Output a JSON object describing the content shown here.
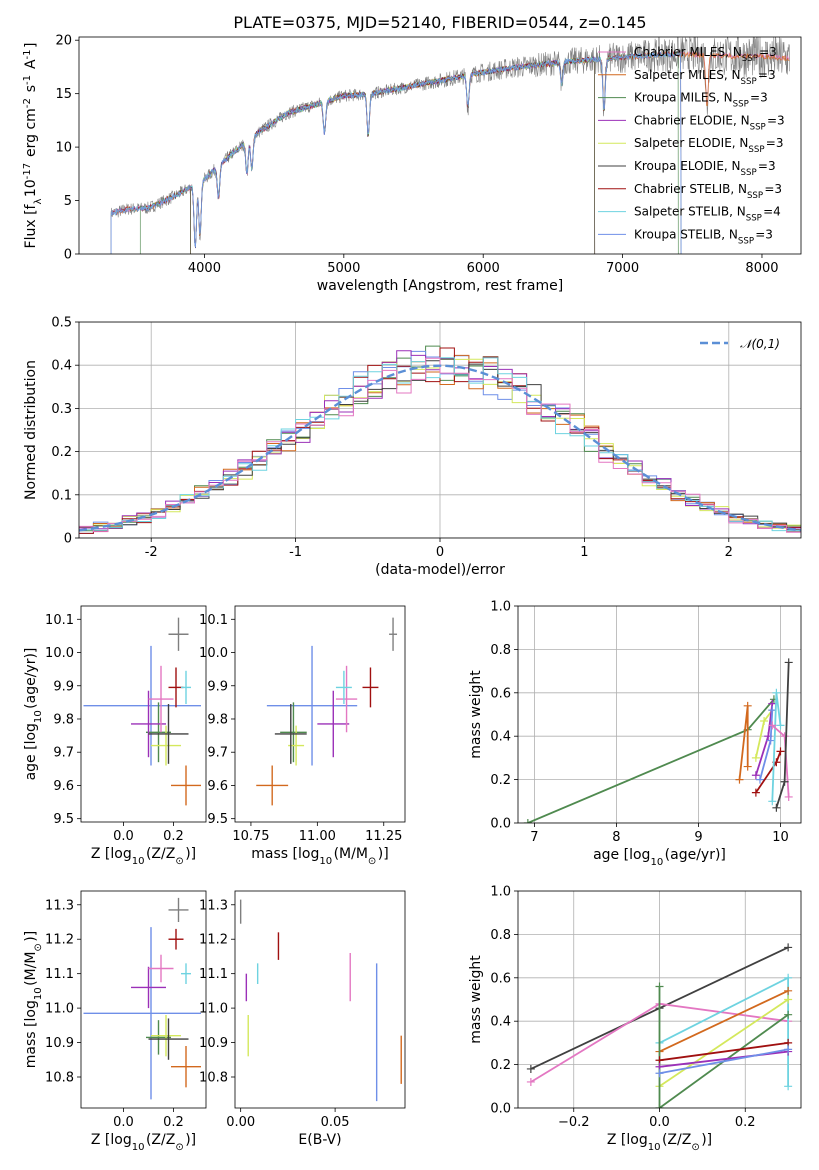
{
  "title": "PLATE=0375, MJD=52140, FIBERID=0544, z=0.145",
  "colors": [
    "#7f7f7f",
    "#e377c2",
    "#d2691e",
    "#4f8a4f",
    "#9b30b8",
    "#d4e85c",
    "#404040",
    "#a01010",
    "#6ed3e0",
    "#6f8fe8"
  ],
  "chart_data": [
    {
      "type": "line",
      "title": "PLATE=0375, MJD=52140, FIBERID=0544, z=0.145",
      "xlabel": "wavelength [Angstrom, rest frame]",
      "ylabel": "Flux [f$_\\lambda$10$^{-17}$ erg cm$^{-2}$ s$^{-1}$ A$^{-1}$]",
      "xlim": [
        3100,
        8280
      ],
      "ylim": [
        0,
        20.3
      ],
      "xticks": [
        4000,
        5000,
        6000,
        7000,
        8000
      ],
      "yticks": [
        0,
        5,
        10,
        15,
        20
      ],
      "legend_position": "top-right",
      "observed_spectrum": {
        "x": [
          3330,
          3450,
          3600,
          3800,
          4000,
          4200,
          4400,
          4600,
          4800,
          5000,
          5200,
          5400,
          5600,
          5800,
          6000,
          6200,
          6400,
          6600,
          6800,
          7000,
          7200,
          7400,
          7600,
          7800,
          8000,
          8200
        ],
        "y": [
          3.8,
          4.2,
          4.3,
          5.5,
          7.0,
          9.4,
          11.5,
          13.2,
          14.0,
          14.8,
          15.0,
          15.5,
          16.0,
          16.5,
          17.0,
          17.4,
          17.7,
          18.0,
          18.2,
          18.4,
          18.6,
          18.7,
          18.6,
          18.5,
          18.5,
          18.3
        ]
      },
      "series": [
        {
          "name": "Chabrier MILES, N$_{SSP}$=3",
          "cutoff": [
            null,
            null
          ]
        },
        {
          "name": "Salpeter MILES, N$_{SSP}$=3",
          "cutoff": [
            null,
            null
          ]
        },
        {
          "name": "Kroupa MILES, N$_{SSP}$=3",
          "cutoff": [
            3540,
            7400
          ]
        },
        {
          "name": "Chabrier ELODIE, N$_{SSP}$=3",
          "cutoff": [
            3900,
            6800
          ]
        },
        {
          "name": "Salpeter ELODIE, N$_{SSP}$=3",
          "cutoff": [
            3900,
            6800
          ]
        },
        {
          "name": "Kroupa ELODIE, N$_{SSP}$=3",
          "cutoff": [
            3900,
            6800
          ]
        },
        {
          "name": "Chabrier STELIB, N$_{SSP}$=3",
          "cutoff": [
            3330,
            7420
          ]
        },
        {
          "name": "Salpeter STELIB, N$_{SSP}$=4",
          "cutoff": [
            3330,
            7420
          ]
        },
        {
          "name": "Kroupa STELIB, N$_{SSP}$=3",
          "cutoff": [
            3330,
            7420
          ]
        }
      ]
    },
    {
      "type": "histogram",
      "xlabel": "(data-model)/error",
      "ylabel": "Normed distribution",
      "xlim": [
        -2.5,
        2.5
      ],
      "ylim": [
        0,
        0.5
      ],
      "xticks": [
        -2,
        -1,
        0,
        1,
        2
      ],
      "yticks": [
        0.0,
        0.1,
        0.2,
        0.3,
        0.4,
        0.5
      ],
      "bin_width": 0.1,
      "grid": true,
      "legend_position": "top-right",
      "reference_curve": {
        "name": "$\\mathcal{N}(0,1)$",
        "mean": 0,
        "sigma": 1,
        "style": "dashed",
        "color": "#5b8fd6"
      }
    },
    {
      "type": "scatter",
      "xlabel": "Z [log$_{10}$(Z/Z$_\\odot$)]",
      "ylabel": "age  [log$_{10}$(age/yr)]",
      "xlim": [
        -0.17,
        0.33
      ],
      "ylim": [
        9.49,
        10.14
      ],
      "xticks": [
        "0.0",
        "0.2"
      ],
      "yticks": [
        "9.5",
        "9.6",
        "9.7",
        "9.8",
        "9.9",
        "10.0",
        "10.1"
      ],
      "points": [
        {
          "c": 9,
          "x": 0.11,
          "y": 9.84,
          "xe": [
            -0.27,
            0.2
          ],
          "ye": 0.18
        },
        {
          "c": 3,
          "x": 0.14,
          "y": 9.76,
          "xe": 0.05,
          "ye": 0.09
        },
        {
          "c": 4,
          "x": 0.1,
          "y": 9.785,
          "xe": 0.07,
          "ye": 0.1
        },
        {
          "c": 5,
          "x": 0.17,
          "y": 9.72,
          "xe": 0.06,
          "ye": 0.06
        },
        {
          "c": 1,
          "x": 0.15,
          "y": 9.86,
          "xe": 0.05,
          "ye": 0.1
        },
        {
          "c": 7,
          "x": 0.21,
          "y": 9.895,
          "xe": 0.03,
          "ye": 0.06
        },
        {
          "c": 8,
          "x": 0.25,
          "y": 9.895,
          "xe": 0.02,
          "ye": 0.05
        },
        {
          "c": 6,
          "x": 0.18,
          "y": 9.755,
          "xe": 0.08,
          "ye": 0.09
        },
        {
          "c": 2,
          "x": 0.25,
          "y": 9.6,
          "xe": 0.06,
          "ye": 0.06
        },
        {
          "c": 0,
          "x": 0.22,
          "y": 10.055,
          "xe": 0.04,
          "ye": 0.05
        }
      ]
    },
    {
      "type": "scatter",
      "xlabel": "mass [log$_{10}$(M/M$_\\odot$)]",
      "ylabel": "",
      "xlim": [
        10.69,
        11.33
      ],
      "ylim": [
        9.49,
        10.14
      ],
      "xticks": [
        "10.75",
        "11.00",
        "11.25"
      ],
      "yticks": [
        "9.5",
        "9.6",
        "9.7",
        "9.8",
        "9.9",
        "10.0",
        "10.1"
      ],
      "points": [
        {
          "c": 9,
          "x": 10.98,
          "y": 9.84,
          "xe": 0.17,
          "ye": 0.18
        },
        {
          "c": 3,
          "x": 10.91,
          "y": 9.76,
          "xe": 0.05,
          "ye": 0.09
        },
        {
          "c": 4,
          "x": 11.06,
          "y": 9.785,
          "xe": 0.06,
          "ye": 0.1
        },
        {
          "c": 5,
          "x": 10.92,
          "y": 9.72,
          "xe": 0.03,
          "ye": 0.06
        },
        {
          "c": 1,
          "x": 11.11,
          "y": 9.86,
          "xe": 0.04,
          "ye": 0.1
        },
        {
          "c": 7,
          "x": 11.2,
          "y": 9.895,
          "xe": 0.03,
          "ye": 0.06
        },
        {
          "c": 8,
          "x": 11.1,
          "y": 9.895,
          "xe": 0.03,
          "ye": 0.05
        },
        {
          "c": 6,
          "x": 10.9,
          "y": 9.755,
          "xe": 0.06,
          "ye": 0.09
        },
        {
          "c": 2,
          "x": 10.83,
          "y": 9.6,
          "xe": 0.06,
          "ye": 0.06
        },
        {
          "c": 0,
          "x": 11.285,
          "y": 10.055,
          "xe": 0.015,
          "ye": 0.05
        }
      ]
    },
    {
      "type": "line",
      "xlabel": "age  [log$_{10}$(age/yr)]",
      "ylabel": "mass weight",
      "xlim": [
        6.8,
        10.25
      ],
      "ylim": [
        0,
        1.0
      ],
      "xticks": [
        "7",
        "8",
        "9",
        "10"
      ],
      "yticks": [
        "0.0",
        "0.2",
        "0.4",
        "0.6",
        "0.8",
        "1.0"
      ],
      "grid": true,
      "series": [
        {
          "c": 3,
          "x": [
            6.92,
            9.6,
            9.92
          ],
          "y": [
            0.0,
            0.43,
            0.57
          ]
        },
        {
          "c": 2,
          "x": [
            9.5,
            9.6,
            9.6
          ],
          "y": [
            0.2,
            0.54,
            0.26
          ]
        },
        {
          "c": 5,
          "x": [
            9.7,
            9.8,
            9.9
          ],
          "y": [
            0.3,
            0.47,
            0.52
          ]
        },
        {
          "c": 4,
          "x": [
            9.7,
            9.85,
            9.9
          ],
          "y": [
            0.22,
            0.4,
            0.55
          ]
        },
        {
          "c": 9,
          "x": [
            9.75,
            9.88,
            9.9
          ],
          "y": [
            0.2,
            0.38,
            0.52
          ]
        },
        {
          "c": 7,
          "x": [
            9.7,
            9.95,
            10.0
          ],
          "y": [
            0.14,
            0.28,
            0.33
          ]
        },
        {
          "c": 8,
          "x": [
            9.9,
            9.95,
            10.0
          ],
          "y": [
            0.1,
            0.6,
            0.45
          ]
        },
        {
          "c": 1,
          "x": [
            9.9,
            10.05,
            10.1
          ],
          "y": [
            0.45,
            0.4,
            0.12
          ]
        },
        {
          "c": 6,
          "x": [
            9.95,
            10.05,
            10.1
          ],
          "y": [
            0.07,
            0.19,
            0.74
          ]
        }
      ]
    },
    {
      "type": "scatter",
      "xlabel": "Z [log$_{10}$(Z/Z$_\\odot$)]",
      "ylabel": "mass [log$_{10}$(M/M$_\\odot$)]",
      "xlim": [
        -0.17,
        0.33
      ],
      "ylim": [
        10.71,
        11.34
      ],
      "xticks": [
        "0.0",
        "0.2"
      ],
      "yticks": [
        "10.8",
        "10.9",
        "11.0",
        "11.1",
        "11.2",
        "11.3"
      ],
      "points": [
        {
          "c": 9,
          "x": 0.11,
          "y": 10.985,
          "xe": [
            -0.27,
            0.2
          ],
          "ye": 0.25
        },
        {
          "c": 3,
          "x": 0.14,
          "y": 10.915,
          "xe": 0.05,
          "ye": 0.05
        },
        {
          "c": 4,
          "x": 0.1,
          "y": 11.06,
          "xe": 0.07,
          "ye": 0.06
        },
        {
          "c": 5,
          "x": 0.17,
          "y": 10.92,
          "xe": 0.06,
          "ye": 0.06
        },
        {
          "c": 1,
          "x": 0.15,
          "y": 11.115,
          "xe": 0.05,
          "ye": 0.04
        },
        {
          "c": 7,
          "x": 0.21,
          "y": 11.2,
          "xe": 0.03,
          "ye": 0.03
        },
        {
          "c": 8,
          "x": 0.25,
          "y": 11.1,
          "xe": 0.02,
          "ye": 0.03
        },
        {
          "c": 6,
          "x": 0.18,
          "y": 10.91,
          "xe": 0.08,
          "ye": 0.06
        },
        {
          "c": 2,
          "x": 0.25,
          "y": 10.83,
          "xe": 0.06,
          "ye": 0.06
        },
        {
          "c": 0,
          "x": 0.22,
          "y": 11.285,
          "xe": 0.04,
          "ye": 0.035
        }
      ]
    },
    {
      "type": "scatter",
      "xlabel": "E(B-V)",
      "ylabel": "",
      "xlim": [
        -0.003,
        0.087
      ],
      "ylim": [
        10.71,
        11.34
      ],
      "xticks": [
        "0.00",
        "0.05"
      ],
      "yticks": [
        "10.8",
        "10.9",
        "11.0",
        "11.1",
        "11.2",
        "11.3"
      ],
      "points": [
        {
          "c": 0,
          "x": 0.0,
          "y": 11.28,
          "ye": 0.035
        },
        {
          "c": 4,
          "x": 0.003,
          "y": 11.06,
          "ye": 0.04
        },
        {
          "c": 5,
          "x": 0.004,
          "y": 10.92,
          "ye": 0.06
        },
        {
          "c": 8,
          "x": 0.009,
          "y": 11.1,
          "ye": 0.03
        },
        {
          "c": 7,
          "x": 0.02,
          "y": 11.18,
          "ye": 0.04
        },
        {
          "c": 1,
          "x": 0.058,
          "y": 11.09,
          "ye": 0.07
        },
        {
          "c": 9,
          "x": 0.072,
          "y": 10.93,
          "ye": 0.2
        },
        {
          "c": 2,
          "x": 0.085,
          "y": 10.85,
          "ye": 0.07
        }
      ]
    },
    {
      "type": "line",
      "xlabel": "Z [log$_{10}$(Z/Z$_\\odot$)]",
      "ylabel": "mass weight",
      "xlim": [
        -0.33,
        0.33
      ],
      "ylim": [
        0,
        1.0
      ],
      "xticks": [
        "−0.2",
        "0.0",
        "0.2"
      ],
      "yticks": [
        "0.0",
        "0.2",
        "0.4",
        "0.6",
        "0.8",
        "1.0"
      ],
      "grid": true,
      "series": [
        {
          "c": 6,
          "x": [
            -0.3,
            0.0,
            0.3
          ],
          "y": [
            0.18,
            0.46,
            0.74
          ]
        },
        {
          "c": 1,
          "x": [
            -0.3,
            0.0,
            0.3
          ],
          "y": [
            0.12,
            0.48,
            0.4
          ]
        },
        {
          "c": 8,
          "x": [
            0.0,
            0.3,
            0.3
          ],
          "y": [
            0.3,
            0.6,
            0.1
          ]
        },
        {
          "c": 2,
          "x": [
            0.0,
            0.3
          ],
          "y": [
            0.26,
            0.54
          ]
        },
        {
          "c": 5,
          "x": [
            0.0,
            0.3
          ],
          "y": [
            0.1,
            0.5
          ]
        },
        {
          "c": 3,
          "x": [
            0.0,
            0.0,
            0.3
          ],
          "y": [
            0.56,
            0.0,
            0.43
          ]
        },
        {
          "c": 7,
          "x": [
            0.0,
            0.3
          ],
          "y": [
            0.22,
            0.3
          ]
        },
        {
          "c": 4,
          "x": [
            0.0,
            0.3
          ],
          "y": [
            0.19,
            0.26
          ]
        },
        {
          "c": 9,
          "x": [
            0.0,
            0.3
          ],
          "y": [
            0.16,
            0.27
          ]
        }
      ]
    }
  ]
}
